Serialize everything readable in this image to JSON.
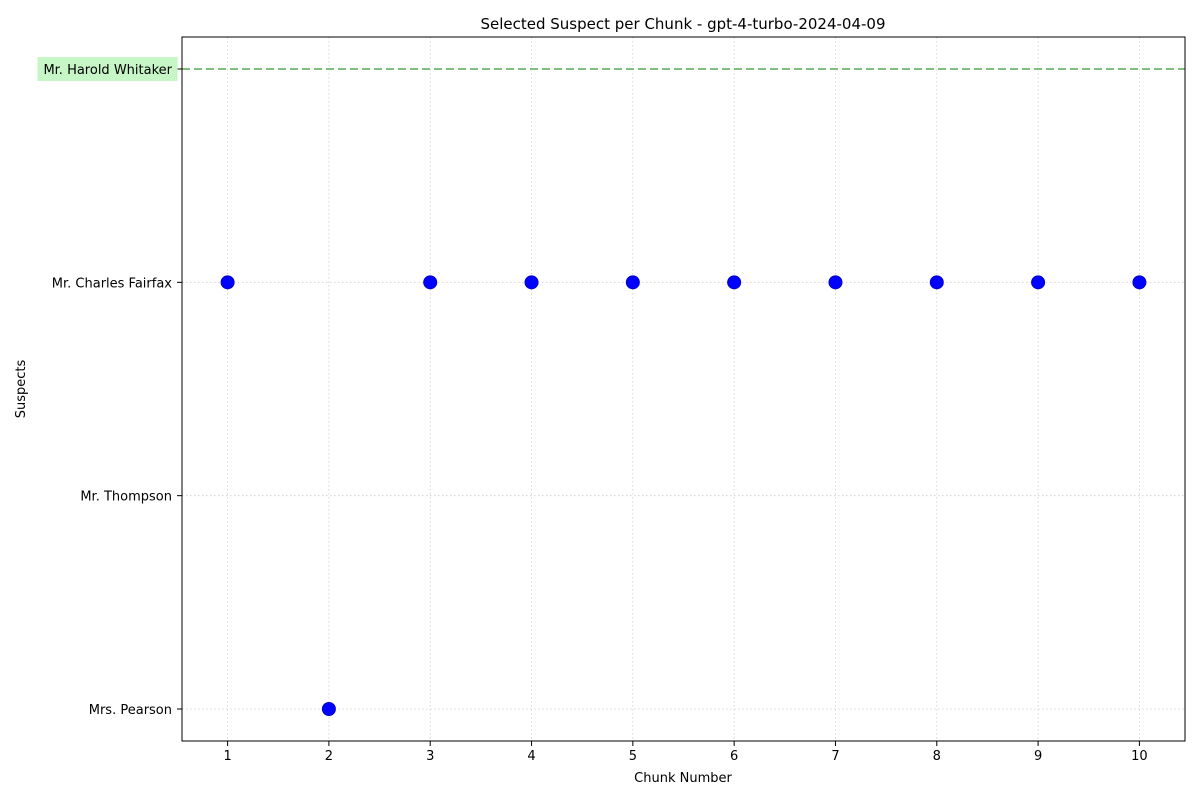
{
  "chart_data": {
    "type": "scatter",
    "title": "Selected Suspect per Chunk - gpt-4-turbo-2024-04-09",
    "xlabel": "Chunk Number",
    "ylabel": "Suspects",
    "x_ticks": [
      1,
      2,
      3,
      4,
      5,
      6,
      7,
      8,
      9,
      10
    ],
    "xlim": [
      0.55,
      10.45
    ],
    "categories": [
      "Mrs. Pearson",
      "Mr. Thompson",
      "Mr. Charles Fairfax",
      "Mr. Harold Whitaker"
    ],
    "ylim": [
      -0.15,
      3.15
    ],
    "points": [
      {
        "x": 1,
        "y": "Mr. Charles Fairfax"
      },
      {
        "x": 2,
        "y": "Mrs. Pearson"
      },
      {
        "x": 3,
        "y": "Mr. Charles Fairfax"
      },
      {
        "x": 4,
        "y": "Mr. Charles Fairfax"
      },
      {
        "x": 5,
        "y": "Mr. Charles Fairfax"
      },
      {
        "x": 6,
        "y": "Mr. Charles Fairfax"
      },
      {
        "x": 7,
        "y": "Mr. Charles Fairfax"
      },
      {
        "x": 8,
        "y": "Mr. Charles Fairfax"
      },
      {
        "x": 9,
        "y": "Mr. Charles Fairfax"
      },
      {
        "x": 10,
        "y": "Mr. Charles Fairfax"
      }
    ],
    "highlight": {
      "category": "Mr. Harold Whitaker",
      "line_color": "#7fbf7f",
      "label_bg": "#c6f5c6",
      "line_style": "dashed"
    },
    "marker_color": "#0000ff",
    "grid": true
  }
}
